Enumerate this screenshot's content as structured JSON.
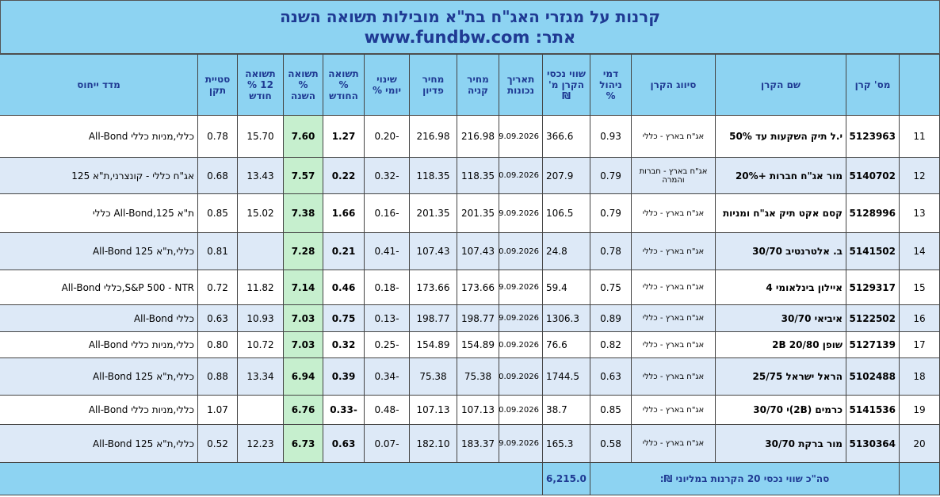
{
  "header": {
    "title": "קרנות על מגזרי האג\"ח בת\"א מובילות תשואה השנה",
    "site_label": "אתר:",
    "site": "www.fundbw.com"
  },
  "table": {
    "columns": [
      "מס' קרן",
      "שם הקרן",
      "סיווג הקרן",
      "דמי ניהול %",
      "שווי נכסי הקרן מ' ₪",
      "תאריך נכונות",
      "מחיר קניה",
      "מחיר פדיון",
      "שינוי יומי %",
      "תשואה % החודש",
      "תשואה % השנה",
      "תשואה 12 % חודש",
      "סטיית תקן",
      "מדד ייחוס"
    ],
    "rows": [
      [
        "11",
        "5123963",
        "י.ל תיק השקעות עד 50%",
        "אג\"ח בארץ - כללי",
        "0.93",
        "366.6",
        "09.09.2026",
        "216.98",
        "216.98",
        "-0.20",
        "1.27",
        "7.60",
        "15.70",
        "0.78",
        "כללי,מניות כללי All-Bond"
      ],
      [
        "12",
        "5140702",
        "מור אג\"ח חברות +20%",
        "אג\"ח בארץ - חברות והמרה",
        "0.79",
        "207.9",
        "10.09.2026",
        "118.35",
        "118.35",
        "-0.32",
        "0.22",
        "7.57",
        "13.43",
        "0.68",
        "אג\"ח כללי - קונצרני,ת\"א 125"
      ],
      [
        "13",
        "5128996",
        "קסם אקט תיק אג\"ח ומניות",
        "אג\"ח בארץ - כללי",
        "0.79",
        "106.5",
        "09.09.2026",
        "201.35",
        "201.35",
        "-0.16",
        "1.66",
        "7.38",
        "15.02",
        "0.85",
        "ת\"א 125,All-Bond כללי"
      ],
      [
        "14",
        "5141502",
        "ב. אלטרנטיב 30/70",
        "אג\"ח בארץ - כללי",
        "0.78",
        "24.8",
        "10.09.2026",
        "107.43",
        "107.43",
        "-0.41",
        "0.21",
        "7.28",
        null,
        "0.81",
        "כללי,ת\"א 125 All-Bond"
      ],
      [
        "15",
        "5129317",
        "איילון בינלאומי 4",
        "אג\"ח בארץ - כללי",
        "0.75",
        "59.4",
        "09.09.2026",
        "173.66",
        "173.66",
        "-0.18",
        "0.46",
        "7.14",
        "11.82",
        "0.72",
        "S&P 500 - NTR,כללי All-Bond"
      ],
      [
        "16",
        "5122502",
        "איביאי 30/70",
        "אג\"ח בארץ - כללי",
        "0.89",
        "1306.3",
        "09.09.2026",
        "198.77",
        "198.77",
        "-0.13",
        "0.75",
        "7.03",
        "10.93",
        "0.63",
        "כללי All-Bond"
      ],
      [
        "17",
        "5127139",
        "שופן 2B 20/80",
        "אג\"ח בארץ - כללי",
        "0.82",
        "76.6",
        "10.09.2026",
        "154.89",
        "154.89",
        "-0.25",
        "0.32",
        "7.03",
        "10.72",
        "0.80",
        "כללי,מניות כללי All-Bond"
      ],
      [
        "18",
        "5102488",
        "הראל ישראל 25/75",
        "אג\"ח בארץ - כללי",
        "0.63",
        "1744.5",
        "10.09.2026",
        "75.38",
        "75.38",
        "-0.34",
        "0.39",
        "6.94",
        "13.34",
        "0.88",
        "כללי,ת\"א 125 All-Bond"
      ],
      [
        "19",
        "5141536",
        "כרמים (2B)י 30/70",
        "אג\"ח בארץ - כללי",
        "0.85",
        "38.7",
        "10.09.2026",
        "107.13",
        "107.13",
        "-0.48",
        "-0.33",
        "6.76",
        null,
        "1.07",
        "כללי,מניות כללי All-Bond"
      ],
      [
        "20",
        "5130364",
        "מור ברקת 30/70",
        "אג\"ח בארץ - כללי",
        "0.58",
        "165.3",
        "09.09.2026",
        "183.37",
        "182.10",
        "-0.07",
        "0.63",
        "6.73",
        "12.23",
        "0.52",
        "כללי,ת\"א 125 All-Bond"
      ]
    ],
    "total_label": "סה\"כ שווי נכסי 20 הקרנות במליוני ₪:",
    "total": "6,215.0"
  }
}
